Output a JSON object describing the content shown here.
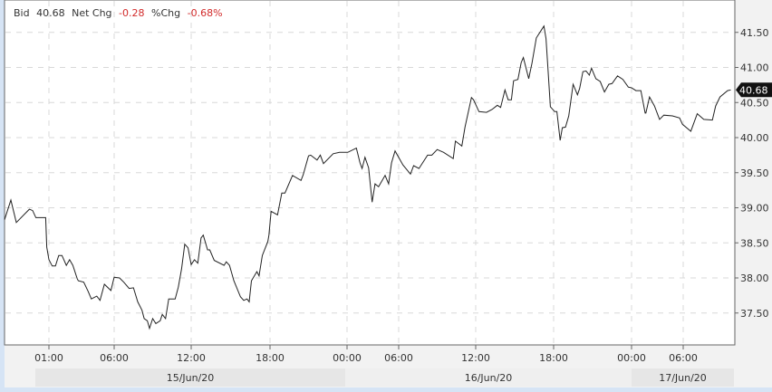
{
  "header": {
    "bid_label": "Bid",
    "bid_value": "40.68",
    "net_chg_label": "Net Chg",
    "net_chg_value": "-0.28",
    "pct_chg_label": "%Chg",
    "pct_chg_value": "-0.68%"
  },
  "colors": {
    "negative": "#d22b2b",
    "line": "#222222",
    "grid": "#d8d8d8",
    "last_price_tag": "#111111"
  },
  "chart_data": {
    "type": "line",
    "title": "",
    "xlabel": "",
    "ylabel": "",
    "y_axis_position": "right",
    "ylim": [
      37.0,
      41.9
    ],
    "grid": true,
    "last_price_label": "40.68",
    "y_ticks": [
      "37.50",
      "38.00",
      "38.50",
      "39.00",
      "39.50",
      "40.00",
      "40.50",
      "41.00",
      "41.50"
    ],
    "x_ticks": [
      {
        "label": "01:00",
        "t": "06-15 01:00"
      },
      {
        "label": "06:00",
        "t": "06-15 06:00"
      },
      {
        "label": "12:00",
        "t": "06-15 12:00"
      },
      {
        "label": "18:00",
        "t": "06-15 18:00"
      },
      {
        "label": "00:00",
        "t": "06-16 00:00"
      },
      {
        "label": "06:00",
        "t": "06-16 06:00"
      },
      {
        "label": "12:00",
        "t": "06-16 12:00"
      },
      {
        "label": "18:00",
        "t": "06-16 18:00"
      },
      {
        "label": "00:00",
        "t": "06-17 00:00"
      },
      {
        "label": "06:00",
        "t": "06-17 06:00"
      }
    ],
    "date_bands": [
      "15/Jun/20",
      "16/Jun/20",
      "17/Jun/20"
    ],
    "points": [
      [
        "06-14 21:30",
        38.83
      ],
      [
        "06-14 22:05",
        39.11
      ],
      [
        "06-14 22:30",
        38.79
      ],
      [
        "06-14 23:30",
        38.98
      ],
      [
        "06-14 23:45",
        38.96
      ],
      [
        "06-15 00:00",
        38.86
      ],
      [
        "06-15 00:45",
        38.86
      ],
      [
        "06-15 00:50",
        38.44
      ],
      [
        "06-15 01:00",
        38.26
      ],
      [
        "06-15 01:15",
        38.17
      ],
      [
        "06-15 01:30",
        38.17
      ],
      [
        "06-15 01:45",
        38.32
      ],
      [
        "06-15 02:00",
        38.32
      ],
      [
        "06-15 02:20",
        38.18
      ],
      [
        "06-15 02:35",
        38.26
      ],
      [
        "06-15 02:50",
        38.18
      ],
      [
        "06-15 03:10",
        37.99
      ],
      [
        "06-15 03:15",
        37.96
      ],
      [
        "06-15 03:40",
        37.94
      ],
      [
        "06-15 04:00",
        37.81
      ],
      [
        "06-15 04:15",
        37.7
      ],
      [
        "06-15 04:40",
        37.74
      ],
      [
        "06-15 04:55",
        37.68
      ],
      [
        "06-15 05:15",
        37.91
      ],
      [
        "06-15 05:45",
        37.82
      ],
      [
        "06-15 06:00",
        38.01
      ],
      [
        "06-15 06:25",
        38.0
      ],
      [
        "06-15 06:45",
        37.94
      ],
      [
        "06-15 07:10",
        37.85
      ],
      [
        "06-15 07:30",
        37.86
      ],
      [
        "06-15 07:50",
        37.66
      ],
      [
        "06-15 08:10",
        37.54
      ],
      [
        "06-15 08:20",
        37.42
      ],
      [
        "06-15 08:35",
        37.39
      ],
      [
        "06-15 08:45",
        37.28
      ],
      [
        "06-15 09:00",
        37.42
      ],
      [
        "06-15 09:15",
        37.35
      ],
      [
        "06-15 09:35",
        37.39
      ],
      [
        "06-15 09:45",
        37.48
      ],
      [
        "06-15 10:00",
        37.42
      ],
      [
        "06-15 10:15",
        37.7
      ],
      [
        "06-15 10:45",
        37.7
      ],
      [
        "06-15 11:00",
        37.87
      ],
      [
        "06-15 11:15",
        38.13
      ],
      [
        "06-15 11:30",
        38.48
      ],
      [
        "06-15 11:45",
        38.43
      ],
      [
        "06-15 12:00",
        38.19
      ],
      [
        "06-15 12:15",
        38.26
      ],
      [
        "06-15 12:30",
        38.21
      ],
      [
        "06-15 12:45",
        38.57
      ],
      [
        "06-15 12:55",
        38.61
      ],
      [
        "06-15 13:15",
        38.4
      ],
      [
        "06-15 13:25",
        38.4
      ],
      [
        "06-15 13:45",
        38.25
      ],
      [
        "06-15 14:30",
        38.18
      ],
      [
        "06-15 14:40",
        38.23
      ],
      [
        "06-15 14:55",
        38.18
      ],
      [
        "06-15 15:15",
        37.96
      ],
      [
        "06-15 15:45",
        37.73
      ],
      [
        "06-15 16:00",
        37.68
      ],
      [
        "06-15 16:15",
        37.7
      ],
      [
        "06-15 16:25",
        37.66
      ],
      [
        "06-15 16:35",
        37.96
      ],
      [
        "06-15 17:00",
        38.09
      ],
      [
        "06-15 17:10",
        38.03
      ],
      [
        "06-15 17:25",
        38.32
      ],
      [
        "06-15 17:50",
        38.52
      ],
      [
        "06-15 17:55",
        38.61
      ],
      [
        "06-15 18:05",
        38.95
      ],
      [
        "06-15 18:35",
        38.9
      ],
      [
        "06-15 18:55",
        39.21
      ],
      [
        "06-15 19:10",
        39.21
      ],
      [
        "06-15 19:45",
        39.46
      ],
      [
        "06-15 20:25",
        39.39
      ],
      [
        "06-15 20:35",
        39.47
      ],
      [
        "06-15 21:00",
        39.74
      ],
      [
        "06-15 21:10",
        39.75
      ],
      [
        "06-15 21:40",
        39.68
      ],
      [
        "06-15 21:55",
        39.75
      ],
      [
        "06-15 22:10",
        39.63
      ],
      [
        "06-15 22:55",
        39.77
      ],
      [
        "06-15 23:25",
        39.79
      ],
      [
        "06-16 00:05",
        39.79
      ],
      [
        "06-16 01:05",
        39.85
      ],
      [
        "06-16 01:30",
        39.64
      ],
      [
        "06-16 01:45",
        39.56
      ],
      [
        "06-16 02:05",
        39.72
      ],
      [
        "06-16 02:30",
        39.57
      ],
      [
        "06-16 02:55",
        39.08
      ],
      [
        "06-16 03:15",
        39.34
      ],
      [
        "06-16 03:40",
        39.3
      ],
      [
        "06-16 04:25",
        39.46
      ],
      [
        "06-16 04:50",
        39.34
      ],
      [
        "06-16 05:10",
        39.64
      ],
      [
        "06-16 05:35",
        39.81
      ],
      [
        "06-16 06:20",
        39.61
      ],
      [
        "06-16 06:55",
        39.48
      ],
      [
        "06-16 07:10",
        39.6
      ],
      [
        "06-16 07:35",
        39.56
      ],
      [
        "06-16 08:15",
        39.75
      ],
      [
        "06-16 08:35",
        39.75
      ],
      [
        "06-16 09:00",
        39.83
      ],
      [
        "06-16 09:30",
        39.79
      ],
      [
        "06-16 10:15",
        39.7
      ],
      [
        "06-16 10:25",
        39.95
      ],
      [
        "06-16 10:55",
        39.88
      ],
      [
        "06-16 11:10",
        40.15
      ],
      [
        "06-16 11:40",
        40.57
      ],
      [
        "06-16 11:50",
        40.54
      ],
      [
        "06-16 12:15",
        40.37
      ],
      [
        "06-16 12:50",
        40.36
      ],
      [
        "06-16 13:15",
        40.4
      ],
      [
        "06-16 13:40",
        40.46
      ],
      [
        "06-16 13:55",
        40.43
      ],
      [
        "06-16 14:15",
        40.68
      ],
      [
        "06-16 14:30",
        40.54
      ],
      [
        "06-16 14:45",
        40.54
      ],
      [
        "06-16 14:55",
        40.81
      ],
      [
        "06-16 15:15",
        40.83
      ],
      [
        "06-16 15:30",
        41.07
      ],
      [
        "06-16 15:40",
        41.14
      ],
      [
        "06-16 16:05",
        40.84
      ],
      [
        "06-16 16:20",
        41.06
      ],
      [
        "06-16 16:40",
        41.42
      ],
      [
        "06-16 17:15",
        41.59
      ],
      [
        "06-16 17:25",
        41.41
      ],
      [
        "06-16 17:35",
        40.93
      ],
      [
        "06-16 17:45",
        40.44
      ],
      [
        "06-16 18:05",
        40.37
      ],
      [
        "06-16 18:15",
        40.37
      ],
      [
        "06-16 18:30",
        39.96
      ],
      [
        "06-16 18:40",
        40.14
      ],
      [
        "06-16 18:55",
        40.15
      ],
      [
        "06-16 19:10",
        40.31
      ],
      [
        "06-16 19:30",
        40.76
      ],
      [
        "06-16 19:50",
        40.61
      ],
      [
        "06-16 20:00",
        40.7
      ],
      [
        "06-16 20:15",
        40.94
      ],
      [
        "06-16 20:30",
        40.95
      ],
      [
        "06-16 20:45",
        40.89
      ],
      [
        "06-16 20:55",
        40.99
      ],
      [
        "06-16 21:15",
        40.84
      ],
      [
        "06-16 21:35",
        40.8
      ],
      [
        "06-16 21:55",
        40.65
      ],
      [
        "06-16 22:15",
        40.76
      ],
      [
        "06-16 22:30",
        40.77
      ],
      [
        "06-16 22:55",
        40.88
      ],
      [
        "06-16 23:20",
        40.83
      ],
      [
        "06-16 23:45",
        40.72
      ],
      [
        "06-17 00:00",
        40.71
      ],
      [
        "06-17 00:30",
        40.67
      ],
      [
        "06-17 01:05",
        40.67
      ],
      [
        "06-17 01:35",
        40.35
      ],
      [
        "06-17 01:40",
        40.35
      ],
      [
        "06-17 02:05",
        40.58
      ],
      [
        "06-17 02:40",
        40.45
      ],
      [
        "06-17 03:15",
        40.26
      ],
      [
        "06-17 03:45",
        40.32
      ],
      [
        "06-17 04:45",
        40.31
      ],
      [
        "06-17 05:35",
        40.28
      ],
      [
        "06-17 05:55",
        40.19
      ],
      [
        "06-17 06:35",
        40.09
      ],
      [
        "06-17 07:05",
        40.34
      ],
      [
        "06-17 07:35",
        40.26
      ],
      [
        "06-17 08:15",
        40.25
      ],
      [
        "06-17 08:30",
        40.45
      ],
      [
        "06-17 08:50",
        40.58
      ],
      [
        "06-17 09:25",
        40.67
      ],
      [
        "06-17 09:40",
        40.68
      ]
    ]
  }
}
